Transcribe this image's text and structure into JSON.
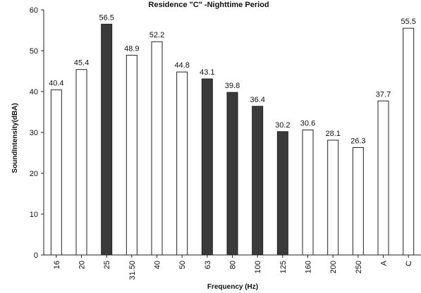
{
  "chart_data": {
    "type": "bar",
    "title": "Residence \"C\" -Nighttime Period",
    "xlabel": "Frequency (Hz)",
    "ylabel": "SoundIntensity(dBA)",
    "ylim": [
      0,
      60
    ],
    "yticks": [
      0,
      10,
      20,
      30,
      40,
      50,
      60
    ],
    "categories": [
      "16",
      "20",
      "25",
      "31.50",
      "40",
      "50",
      "63",
      "80",
      "100",
      "125",
      "160",
      "200",
      "250",
      "A",
      "C"
    ],
    "values": [
      40.4,
      45.4,
      56.5,
      48.9,
      52.2,
      44.8,
      43.1,
      39.8,
      36.4,
      30.2,
      30.6,
      28.1,
      26.3,
      37.7,
      55.5
    ],
    "data_labels": [
      "40.4",
      "45.4",
      "56.5",
      "48.9",
      "52.2",
      "44.8",
      "43.1",
      "39.8",
      "36.4",
      "30.2",
      "30.6",
      "28.1",
      "26.3",
      "37.7",
      "55.5"
    ],
    "bar_styles": [
      "outline",
      "outline",
      "filled",
      "outline",
      "outline",
      "outline",
      "filled",
      "filled",
      "filled",
      "filled",
      "outline",
      "outline",
      "outline",
      "outline",
      "outline"
    ],
    "colors": {
      "filled": "#3a3a3a",
      "outline": "#ffffff",
      "stroke": "#222222"
    },
    "grid": false,
    "legend": "none"
  }
}
